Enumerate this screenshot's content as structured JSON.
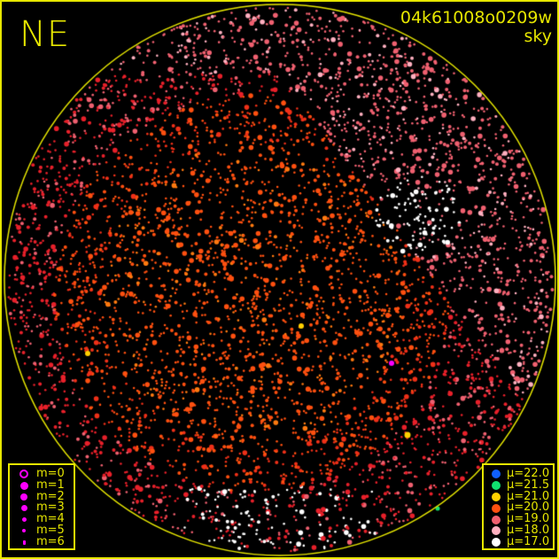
{
  "header": {
    "direction_label": "NE",
    "observation_id": "04k61008o0209w",
    "mode": "sky"
  },
  "colors": {
    "frame": "#e6e600",
    "horizon_circle": "#e6e600",
    "magnitude_symbol": "#ff00ff"
  },
  "magnitude_legend": [
    {
      "label": "m=0",
      "style": "ring"
    },
    {
      "label": "m=1"
    },
    {
      "label": "m=2"
    },
    {
      "label": "m=3"
    },
    {
      "label": "m=4"
    },
    {
      "label": "m=5"
    },
    {
      "label": "m=6"
    }
  ],
  "brightness_legend": [
    {
      "label": "μ=22.0",
      "color": "#1060ff"
    },
    {
      "label": "μ=21.5",
      "color": "#10e070"
    },
    {
      "label": "μ=21.0",
      "color": "#ffd000"
    },
    {
      "label": "μ=20.0",
      "color": "#ff5010"
    },
    {
      "label": "μ=19.0",
      "color": "#f06070"
    },
    {
      "label": "μ=18.0",
      "color": "#ffb0c0"
    },
    {
      "label": "μ=17.0",
      "color": "#ffffff"
    }
  ]
}
